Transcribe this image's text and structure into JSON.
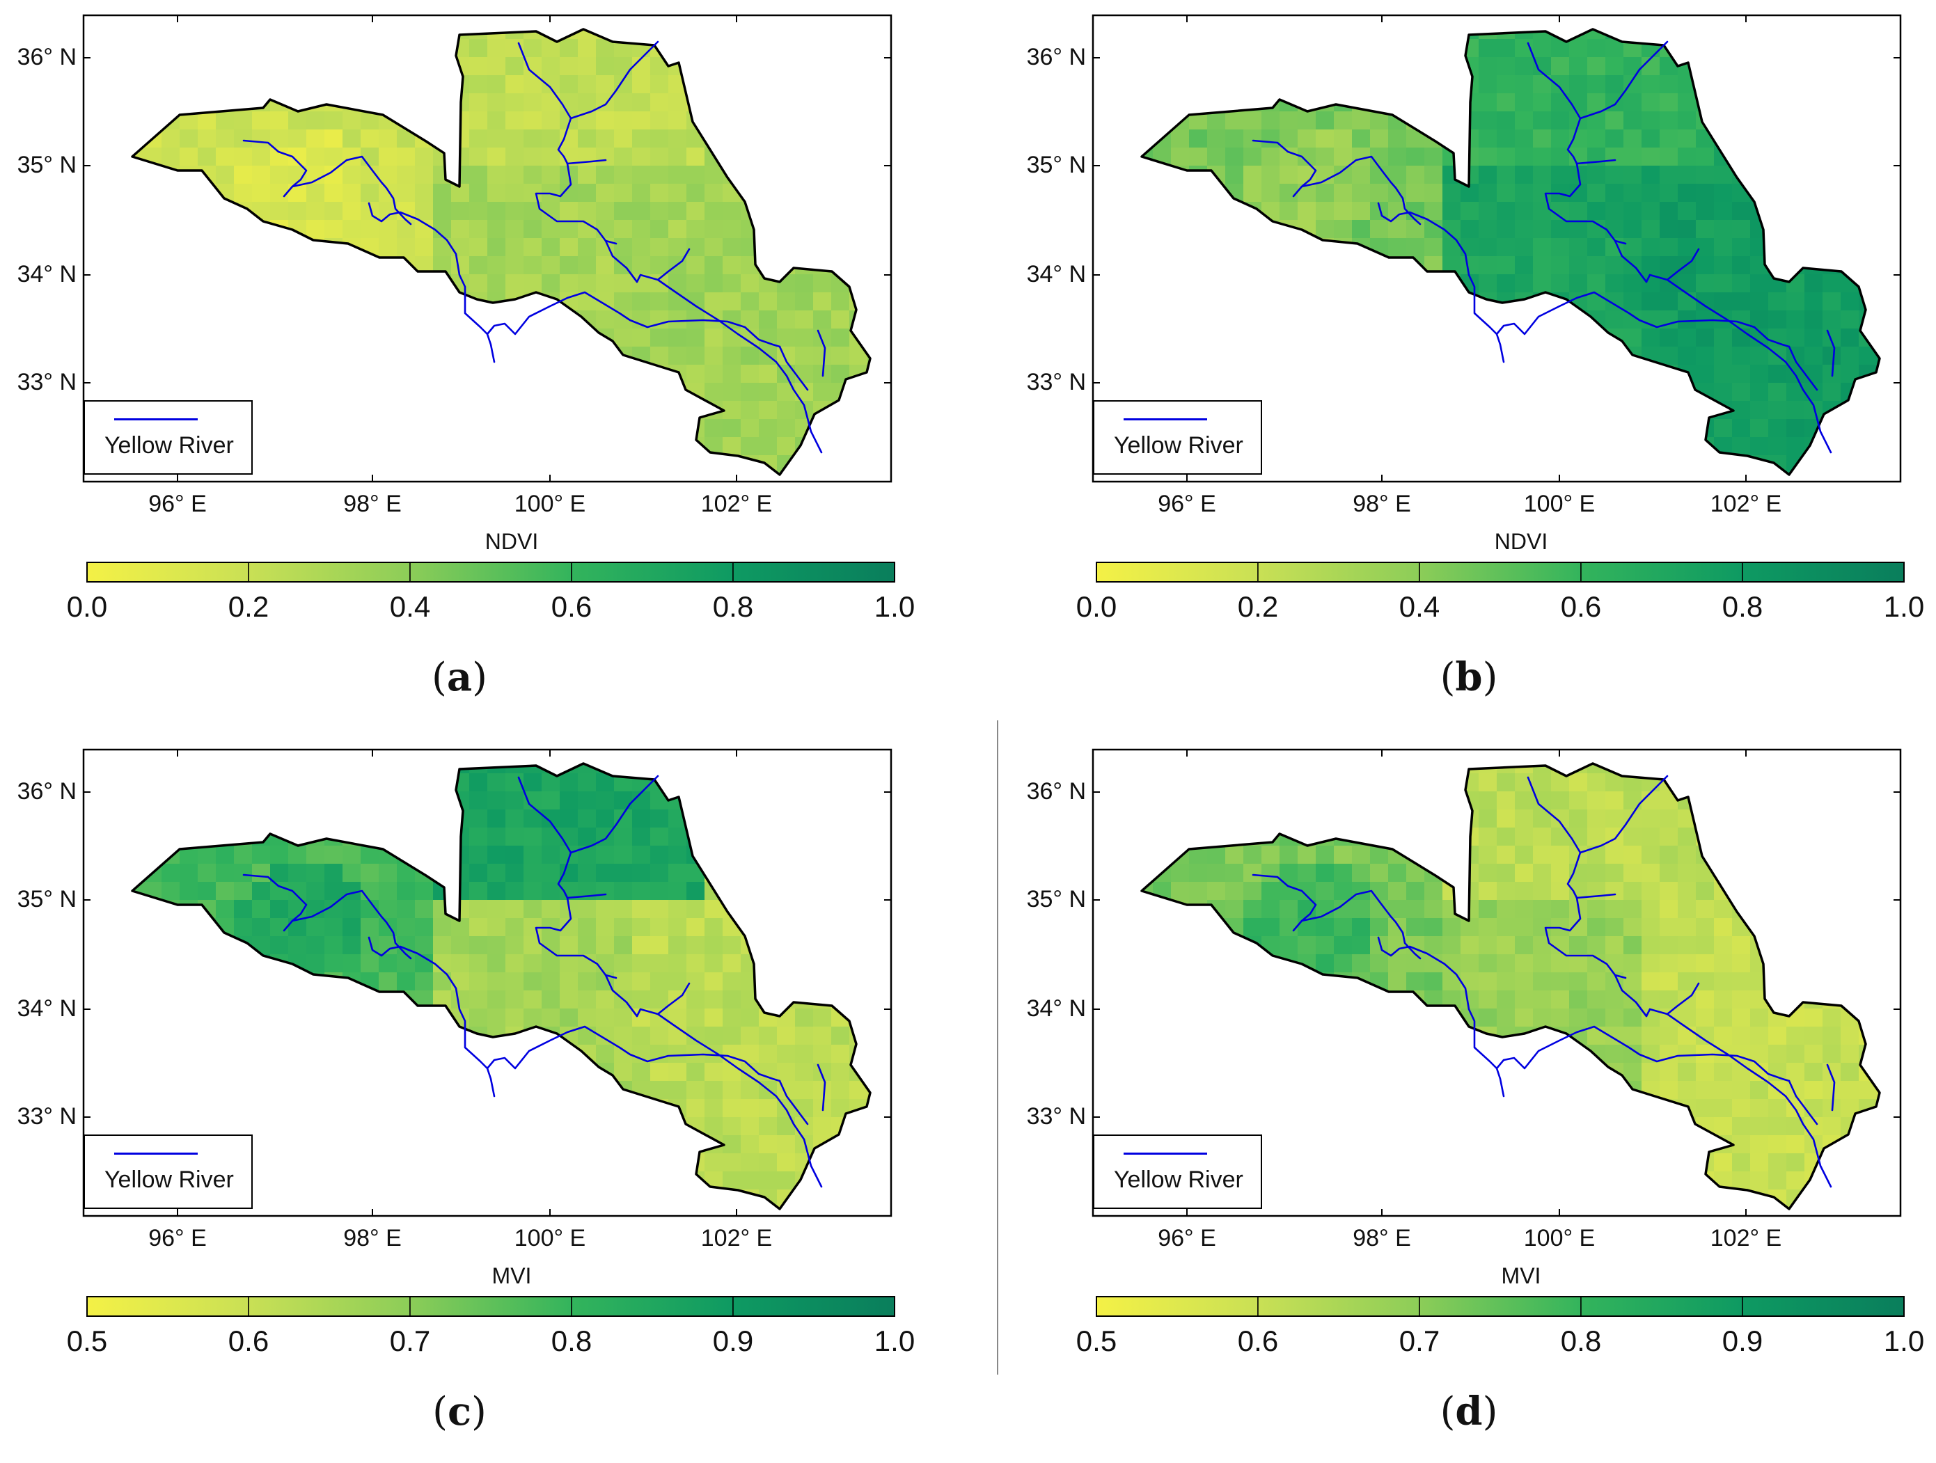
{
  "panels": [
    {
      "id": "a",
      "caption_letter": "a",
      "variable": "NDVI",
      "color_ticks": [
        "0.0",
        "0.2",
        "0.4",
        "0.6",
        "0.8",
        "1.0"
      ],
      "west_mean": 0.18,
      "north_mean": 0.22,
      "central_mean": 0.32,
      "east_mean": 0.33,
      "hotspot": 0.08
    },
    {
      "id": "b",
      "caption_letter": "b",
      "variable": "NDVI",
      "color_ticks": [
        "0.0",
        "0.2",
        "0.4",
        "0.6",
        "0.8",
        "1.0"
      ],
      "west_mean": 0.45,
      "north_mean": 0.62,
      "central_mean": 0.72,
      "east_mean": 0.78,
      "hotspot": 0.3
    },
    {
      "id": "c",
      "caption_letter": "c",
      "variable": "MVI",
      "color_ticks": [
        "0.5",
        "0.6",
        "0.7",
        "0.8",
        "0.9",
        "1.0"
      ],
      "west_mean": 0.78,
      "north_mean": 0.86,
      "central_mean": 0.66,
      "east_mean": 0.62,
      "hotspot": 0.88
    },
    {
      "id": "d",
      "caption_letter": "d",
      "variable": "MVI",
      "color_ticks": [
        "0.5",
        "0.6",
        "0.7",
        "0.8",
        "0.9",
        "1.0"
      ],
      "west_mean": 0.72,
      "north_mean": 0.62,
      "central_mean": 0.68,
      "east_mean": 0.6,
      "hotspot": 0.84
    }
  ],
  "lat_labels": [
    "36° N",
    "35° N",
    "34° N",
    "33° N"
  ],
  "lon_labels": [
    "96° E",
    "98° E",
    "100° E",
    "102° E"
  ],
  "legend_label": "Yellow River",
  "colors": {
    "ramp": [
      "#f4f146",
      "#c9e055",
      "#8ccd58",
      "#33b45c",
      "#0e9a62",
      "#0a7e5c"
    ],
    "river": "#0000e0",
    "boundary": "#000000"
  }
}
